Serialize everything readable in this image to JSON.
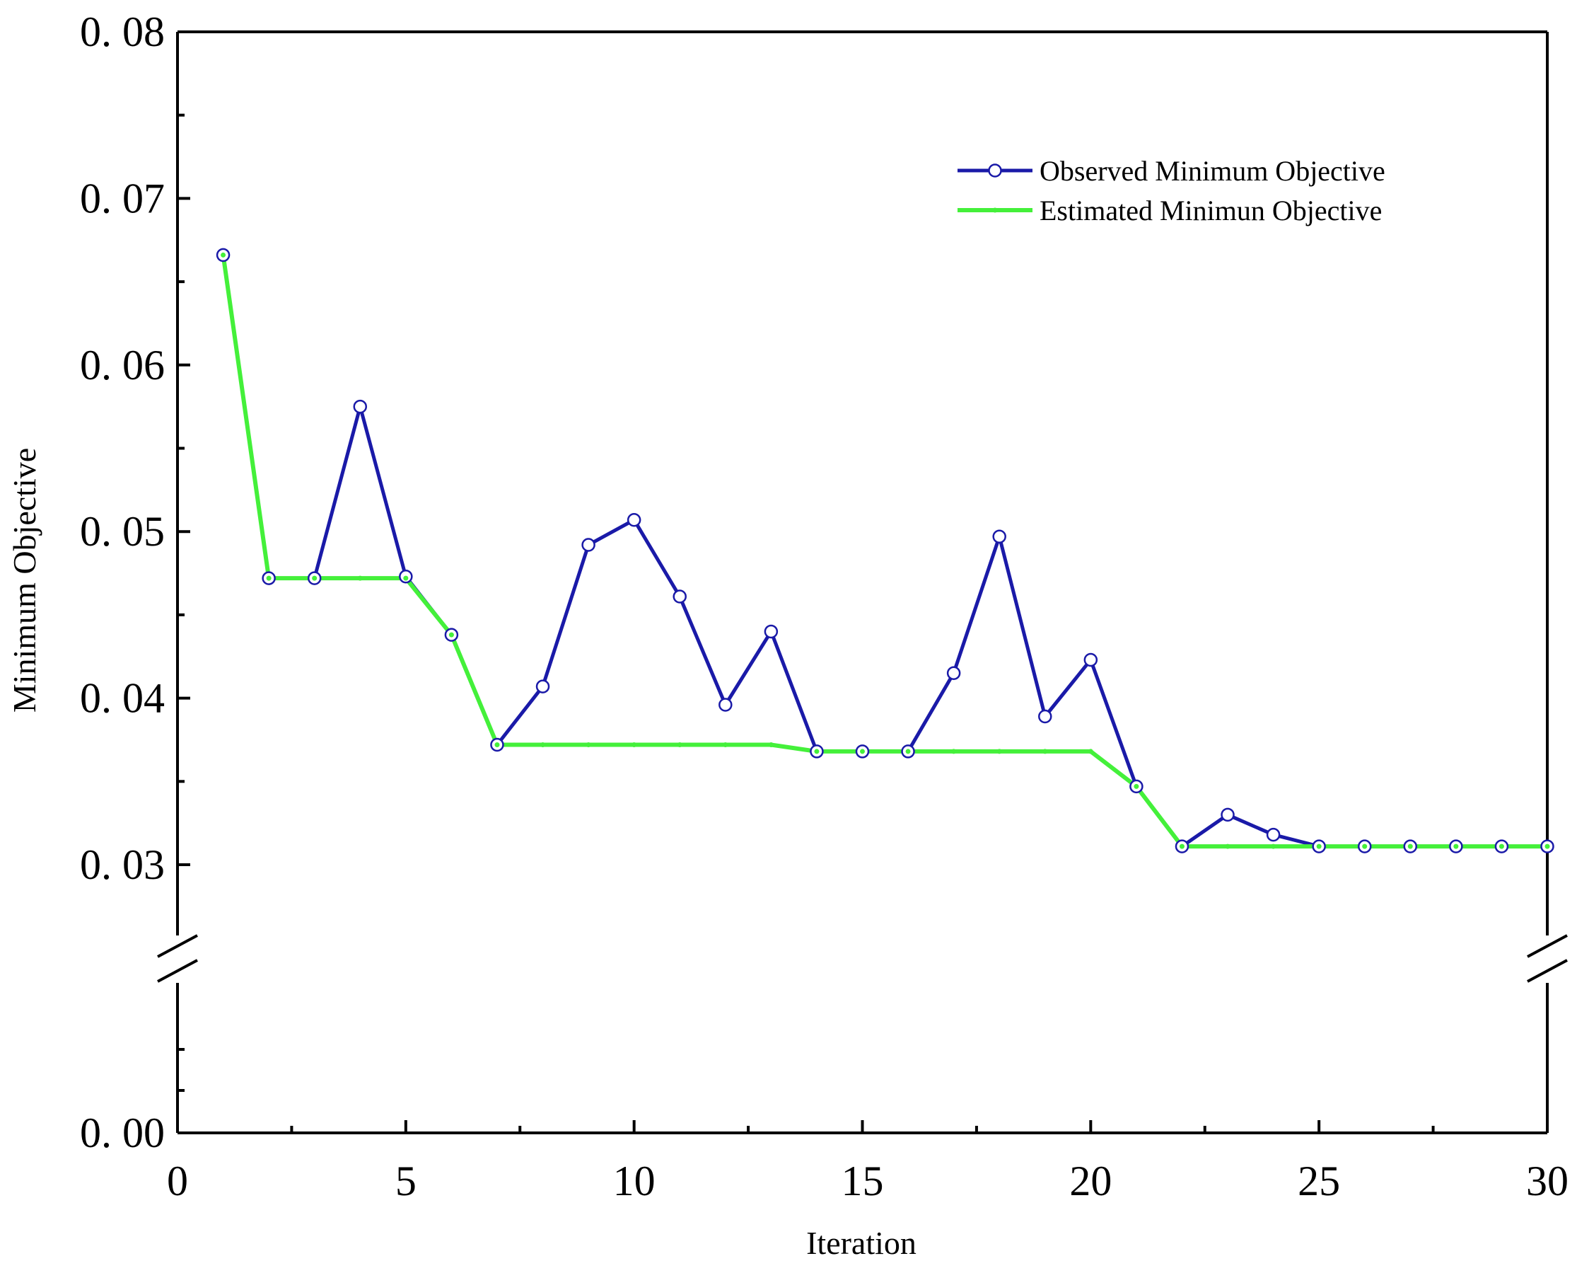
{
  "chart_data": {
    "type": "line",
    "title": "",
    "xlabel": "Iteration",
    "ylabel": "Minimum Objective",
    "xlim": [
      0,
      30
    ],
    "ylim": [
      0.0,
      0.08
    ],
    "axis_break": {
      "below": 0.03,
      "above": 0.0
    },
    "grid": false,
    "legend_placement": "top-right",
    "x_ticks": [
      0,
      5,
      10,
      15,
      20,
      25,
      30
    ],
    "x_tick_labels": [
      "0",
      "5",
      "10",
      "15",
      "20",
      "25",
      "30"
    ],
    "y_ticks": [
      0.0,
      0.03,
      0.04,
      0.05,
      0.06,
      0.07,
      0.08
    ],
    "y_tick_labels": [
      "0. 00",
      "0. 03",
      "0. 04",
      "0. 05",
      "0. 06",
      "0. 07",
      "0. 08"
    ],
    "x": [
      1,
      2,
      3,
      4,
      5,
      6,
      7,
      8,
      9,
      10,
      11,
      12,
      13,
      14,
      15,
      16,
      17,
      18,
      19,
      20,
      21,
      22,
      23,
      24,
      25,
      26,
      27,
      28,
      29,
      30
    ],
    "series": [
      {
        "name": "Observed Minimum Objective",
        "color": "#1a1aa8",
        "marker": "open-circle",
        "values": [
          0.0666,
          0.0472,
          0.0472,
          0.0575,
          0.0473,
          0.0438,
          0.0372,
          0.0407,
          0.0492,
          0.0507,
          0.0461,
          0.0396,
          0.044,
          0.0368,
          0.0368,
          0.0368,
          0.0415,
          0.0497,
          0.0389,
          0.0423,
          0.0347,
          0.0311,
          0.033,
          0.0318,
          0.0311,
          0.0311,
          0.0311,
          0.0311,
          0.0311,
          0.0311
        ]
      },
      {
        "name": "Estimated Minimun Objective",
        "color": "#44f03a",
        "marker": "small-dot",
        "values": [
          0.0666,
          0.0472,
          0.0472,
          0.0472,
          0.0472,
          0.0438,
          0.0372,
          0.0372,
          0.0372,
          0.0372,
          0.0372,
          0.0372,
          0.0372,
          0.0368,
          0.0368,
          0.0368,
          0.0368,
          0.0368,
          0.0368,
          0.0368,
          0.0347,
          0.0311,
          0.0311,
          0.0311,
          0.0311,
          0.0311,
          0.0311,
          0.0311,
          0.0311,
          0.0311
        ]
      }
    ]
  }
}
